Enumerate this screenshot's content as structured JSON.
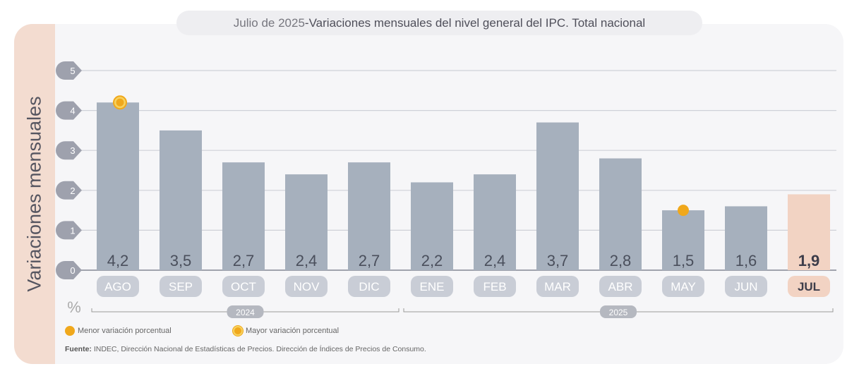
{
  "header": {
    "title_prefix": "Julio de 2025",
    "title_sep": " - ",
    "title_main": "Variaciones mensuales del nivel general del IPC. Total nacional"
  },
  "chart_data": {
    "type": "bar",
    "title": "Julio de 2025 - Variaciones mensuales del nivel general del IPC. Total nacional",
    "ylabel": "Variaciones mensuales",
    "yunit": "%",
    "ylim": [
      0,
      5
    ],
    "yticks": [
      0,
      1,
      2,
      3,
      4,
      5
    ],
    "grid": true,
    "categories": [
      "AGO",
      "SEP",
      "OCT",
      "NOV",
      "DIC",
      "ENE",
      "FEB",
      "MAR",
      "ABR",
      "MAY",
      "JUN",
      "JUL"
    ],
    "value_labels": [
      "4,2",
      "3,5",
      "2,7",
      "2,4",
      "2,7",
      "2,2",
      "2,4",
      "3,7",
      "2,8",
      "1,5",
      "1,6",
      "1,9"
    ],
    "values": [
      4.2,
      3.5,
      2.7,
      2.4,
      2.7,
      2.2,
      2.4,
      3.7,
      2.8,
      1.5,
      1.6,
      1.9
    ],
    "highlight": "JUL",
    "year_groups": [
      {
        "label": "2024",
        "from": "AGO",
        "to": "DIC"
      },
      {
        "label": "2025",
        "from": "ENE",
        "to": "JUL"
      }
    ],
    "markers": [
      {
        "category": "AGO",
        "type": "Mayor variación porcentual"
      },
      {
        "category": "MAY",
        "type": "Menor variación porcentual"
      }
    ],
    "colors": {
      "bar": "#a6b0bd",
      "highlight": "#f2d3c3",
      "marker": "#f0a81c",
      "pill": "#c9cdd6"
    }
  },
  "legend": {
    "min": "Menor variación porcentual",
    "max": "Mayor variación porcentual"
  },
  "source": {
    "label": "Fuente:",
    "text": " INDEC, Dirección Nacional de Estadísticas de Precios. Dirección de Índices de Precios de Consumo."
  }
}
